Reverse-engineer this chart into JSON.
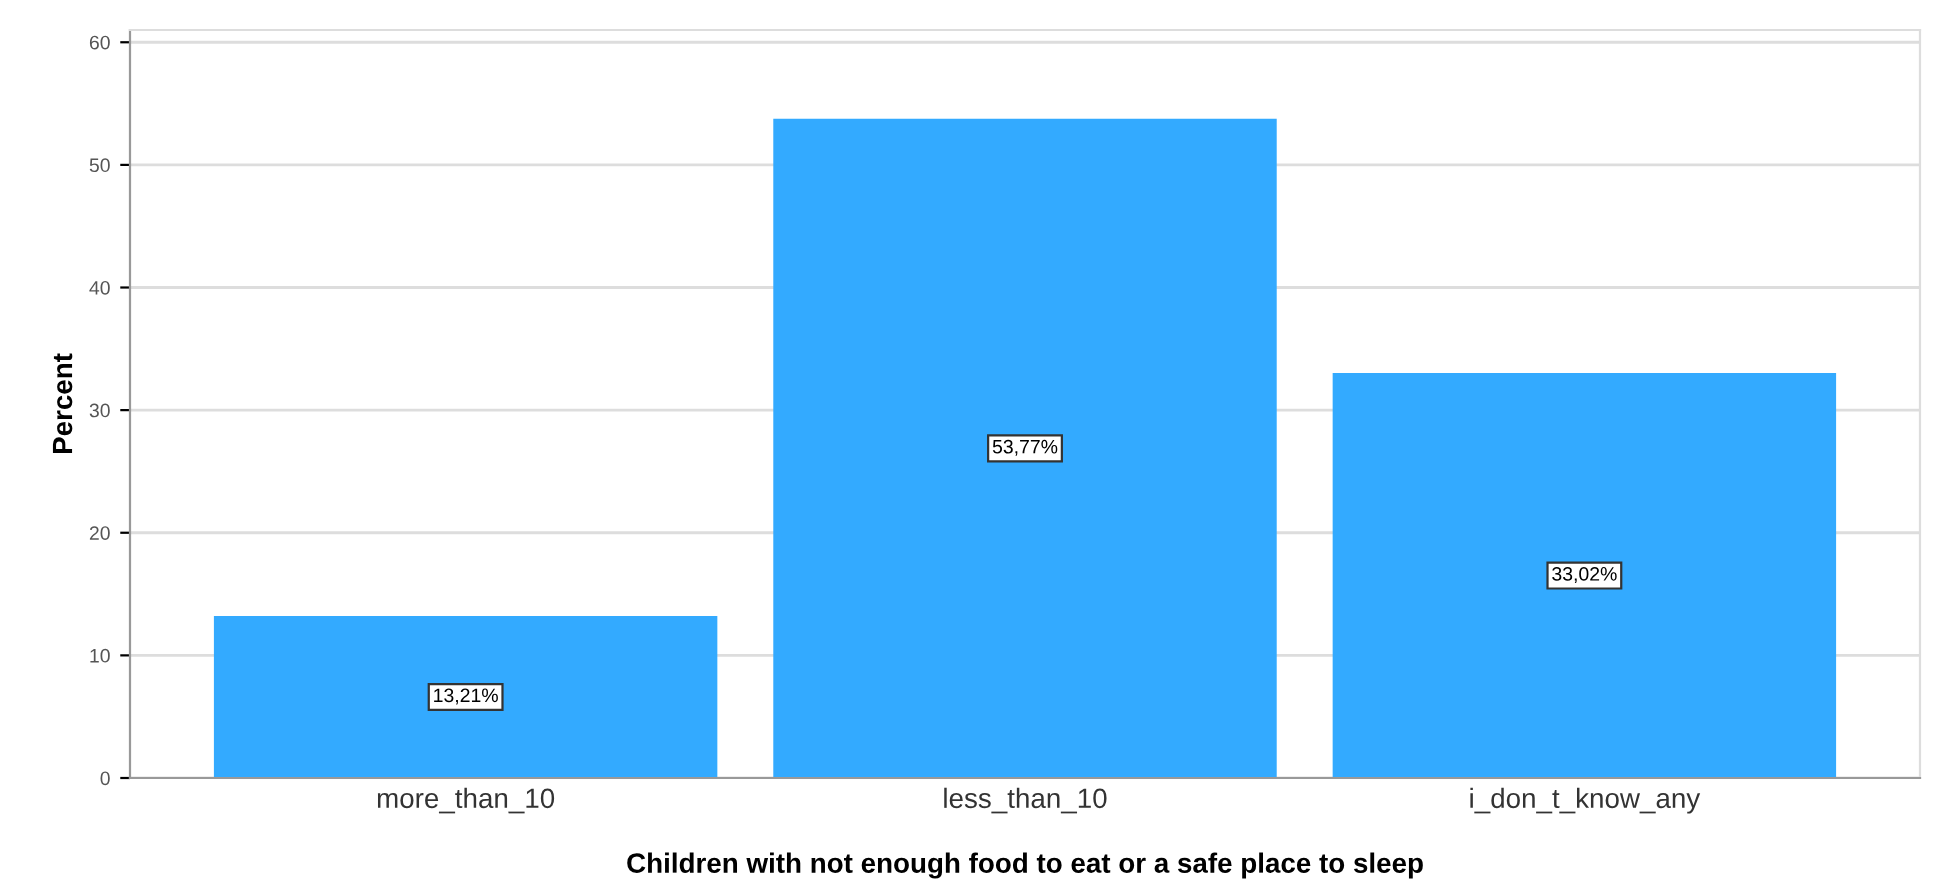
{
  "chart_data": {
    "type": "bar",
    "xlabel": "Children with not enough food to eat or a safe place to sleep",
    "ylabel": "Percent",
    "categories": [
      "more_than_10",
      "less_than_10",
      "i_don_t_know_any"
    ],
    "values": [
      13.21,
      53.77,
      33.02
    ],
    "value_labels": [
      "13,21%",
      "53,77%",
      "33,02%"
    ],
    "color": "#33aaff",
    "ylim": [
      0,
      61
    ],
    "yticks": [
      0,
      10,
      20,
      30,
      40,
      50,
      60
    ],
    "grid": "y",
    "legend": false
  }
}
